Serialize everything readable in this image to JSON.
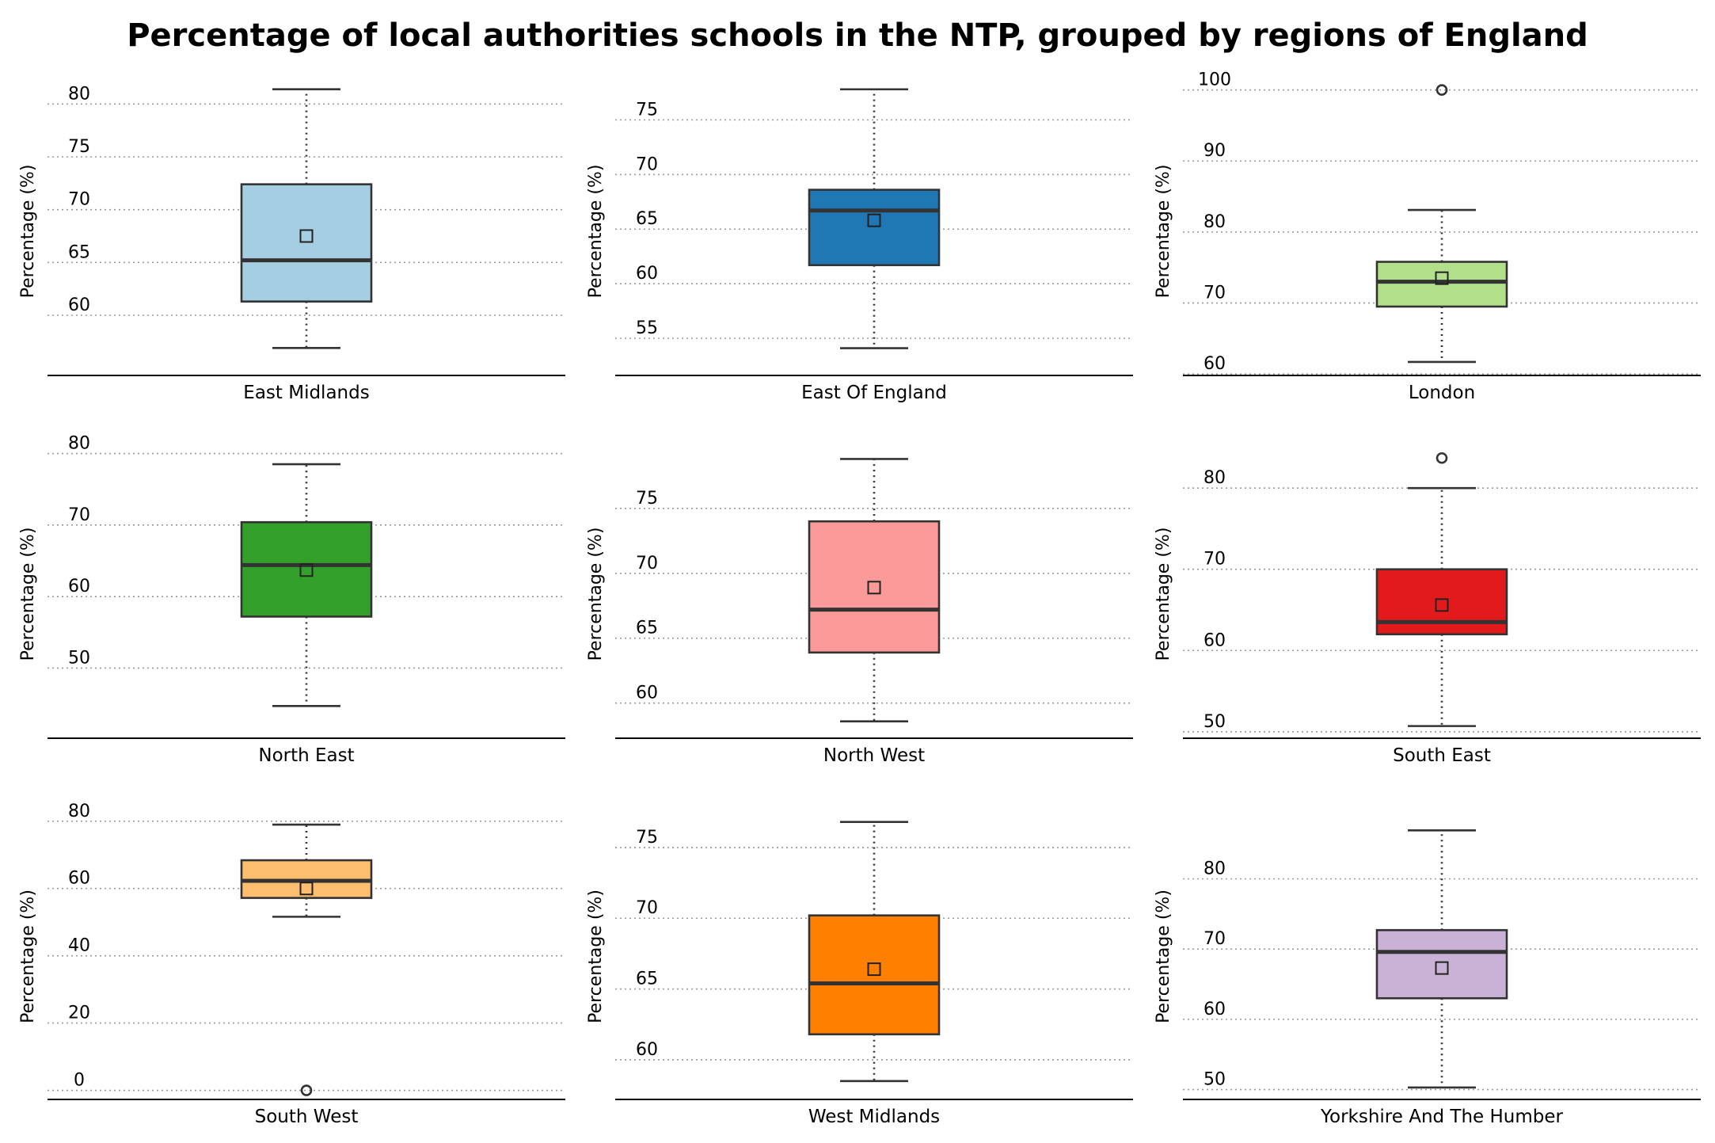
{
  "chart_data": {
    "type": "box",
    "title": "Percentage of local authorities schools in the NTP, grouped by regions of England",
    "ylabel": "Percentage (%)",
    "grid": "y-dotted",
    "panels": [
      {
        "category": "East Midlands",
        "color": "#a6cee3",
        "ylim": [
          54.3,
          81.6
        ],
        "yticks": [
          60,
          65,
          70,
          75,
          80
        ],
        "whisker_low": 56.9,
        "q1": 61.3,
        "median": 65.2,
        "q3": 72.4,
        "whisker_high": 81.4,
        "mean": 67.5,
        "outliers": []
      },
      {
        "category": "East Of England",
        "color": "#1f78b4",
        "ylag": null,
        "ylim": [
          51.6,
          78.0
        ],
        "yticks": [
          55,
          60,
          65,
          70,
          75
        ],
        "whisker_low": 54.1,
        "q1": 61.7,
        "median": 66.7,
        "q3": 68.6,
        "whisker_high": 77.8,
        "mean": 65.8,
        "outliers": []
      },
      {
        "category": "London",
        "color": "#b2df8a",
        "ylim": [
          59.8,
          100.4
        ],
        "yticks": [
          60,
          70,
          80,
          90,
          100
        ],
        "whisker_low": 61.7,
        "q1": 69.5,
        "median": 73.0,
        "q3": 75.8,
        "whisker_high": 83.1,
        "mean": 73.5,
        "outliers": [
          100.0
        ]
      },
      {
        "category": "North East",
        "color": "#33a02c",
        "ylim": [
          40.2,
          80.5
        ],
        "yticks": [
          50,
          60,
          70,
          80
        ],
        "whisker_low": 44.7,
        "q1": 57.2,
        "median": 64.4,
        "q3": 70.4,
        "whisker_high": 78.5,
        "mean": 63.7,
        "outliers": []
      },
      {
        "category": "North West",
        "color": "#fb9a99",
        "ylim": [
          57.3,
          79.5
        ],
        "yticks": [
          60,
          65,
          70,
          75
        ],
        "whisker_low": 58.6,
        "q1": 63.9,
        "median": 67.2,
        "q3": 74.0,
        "whisker_high": 78.8,
        "mean": 68.9,
        "outliers": []
      },
      {
        "category": "South East",
        "color": "#e31a1c",
        "ylim": [
          49.2,
          84.7
        ],
        "yticks": [
          50,
          60,
          70,
          80
        ],
        "whisker_low": 50.7,
        "q1": 62.0,
        "median": 63.5,
        "q3": 70.0,
        "whisker_high": 80.0,
        "mean": 65.6,
        "outliers": [
          83.7
        ]
      },
      {
        "category": "South West",
        "color": "#fdbf6f",
        "ylim": [
          -2.7,
          82.3
        ],
        "yticks": [
          0,
          20,
          40,
          60,
          80
        ],
        "whisker_low": 51.6,
        "q1": 57.2,
        "median": 62.3,
        "q3": 68.4,
        "whisker_high": 79.0,
        "mean": 60.0,
        "outliers": [
          0.0
        ]
      },
      {
        "category": "West Midlands",
        "color": "#ff7f00",
        "ylim": [
          57.2,
          77.4
        ],
        "yticks": [
          60,
          65,
          70,
          75
        ],
        "whisker_low": 58.5,
        "q1": 61.8,
        "median": 65.4,
        "q3": 70.2,
        "whisker_high": 76.8,
        "mean": 66.4,
        "outliers": []
      },
      {
        "category": "Yorkshire And The Humber",
        "color": "#cab2d6",
        "ylim": [
          48.6,
          89.3
        ],
        "yticks": [
          50,
          60,
          70,
          80
        ],
        "whisker_low": 50.3,
        "q1": 63.0,
        "median": 69.6,
        "q3": 72.7,
        "whisker_high": 86.9,
        "mean": 67.3,
        "outliers": []
      }
    ]
  }
}
